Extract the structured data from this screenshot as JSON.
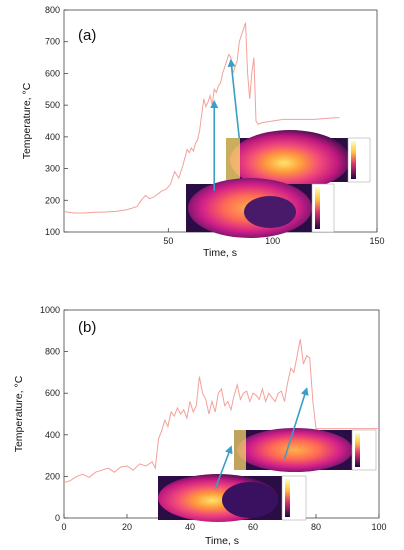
{
  "chart_data": [
    {
      "type": "line",
      "panel_label": "(a)",
      "xlabel": "Time, s",
      "ylabel": "Temperature, °C",
      "xlim": [
        0,
        150
      ],
      "ylim": [
        100,
        800
      ],
      "xticks": [
        50,
        100,
        150
      ],
      "yticks": [
        100,
        200,
        300,
        400,
        500,
        600,
        700,
        800
      ],
      "grid": false,
      "line_color": "#f4a09a",
      "arrow_color": "#3a9fc4",
      "x": [
        0,
        2,
        5,
        10,
        15,
        20,
        25,
        30,
        35,
        37,
        39,
        41,
        43,
        45,
        47,
        49,
        51,
        53,
        55,
        57,
        59,
        60,
        61,
        62,
        63,
        64,
        65,
        66,
        67,
        68,
        69,
        70,
        71,
        72,
        73,
        74,
        75,
        76,
        77,
        78,
        79,
        80,
        81,
        82,
        83,
        84,
        85,
        86,
        87,
        88,
        89,
        90,
        91,
        92,
        93,
        95,
        100,
        105,
        110,
        115,
        120,
        125,
        130,
        132
      ],
      "y": [
        165,
        162,
        160,
        160,
        162,
        163,
        165,
        170,
        180,
        200,
        215,
        205,
        210,
        220,
        230,
        235,
        250,
        290,
        270,
        310,
        360,
        350,
        365,
        355,
        380,
        390,
        420,
        470,
        520,
        495,
        510,
        530,
        500,
        550,
        540,
        560,
        570,
        600,
        620,
        640,
        660,
        650,
        600,
        620,
        640,
        700,
        720,
        740,
        760,
        600,
        520,
        600,
        650,
        450,
        440,
        445,
        450,
        455,
        455,
        455,
        455,
        458,
        460,
        460
      ],
      "arrows": [
        {
          "from": [
            72,
            230
          ],
          "to": [
            72,
            510
          ]
        },
        {
          "from": [
            84,
            395
          ],
          "to": [
            80,
            640
          ]
        }
      ]
    },
    {
      "type": "line",
      "panel_label": "(b)",
      "xlabel": "Time, s",
      "ylabel": "Temperature, °C",
      "xlim": [
        0,
        100
      ],
      "ylim": [
        0,
        1000
      ],
      "xticks": [
        0,
        20,
        40,
        60,
        80,
        100
      ],
      "yticks": [
        0,
        200,
        400,
        600,
        800,
        1000
      ],
      "grid": false,
      "line_color": "#f4a09a",
      "arrow_color": "#3a9fc4",
      "x": [
        0,
        2,
        4,
        6,
        8,
        10,
        12,
        14,
        16,
        18,
        20,
        22,
        24,
        26,
        28,
        29,
        30,
        31,
        32,
        33,
        34,
        35,
        36,
        37,
        38,
        39,
        40,
        41,
        42,
        43,
        44,
        45,
        46,
        47,
        48,
        49,
        50,
        51,
        52,
        53,
        54,
        55,
        56,
        57,
        58,
        59,
        60,
        61,
        62,
        63,
        64,
        65,
        66,
        67,
        68,
        69,
        70,
        71,
        72,
        73,
        74,
        75,
        76,
        77,
        78,
        79,
        80,
        85,
        90,
        95,
        100
      ],
      "y": [
        170,
        180,
        200,
        210,
        195,
        220,
        230,
        240,
        220,
        245,
        250,
        230,
        260,
        250,
        270,
        240,
        380,
        420,
        470,
        440,
        510,
        490,
        530,
        500,
        520,
        480,
        560,
        510,
        540,
        680,
        600,
        570,
        500,
        560,
        510,
        600,
        620,
        540,
        560,
        520,
        590,
        640,
        570,
        600,
        610,
        560,
        600,
        590,
        570,
        620,
        560,
        600,
        580,
        560,
        600,
        610,
        560,
        650,
        720,
        700,
        780,
        860,
        740,
        780,
        770,
        560,
        430,
        430,
        430,
        430,
        430
      ],
      "arrows": [
        {
          "from": [
            48,
            140
          ],
          "to": [
            53,
            340
          ]
        },
        {
          "from": [
            70,
            285
          ],
          "to": [
            77,
            620
          ]
        }
      ]
    }
  ]
}
